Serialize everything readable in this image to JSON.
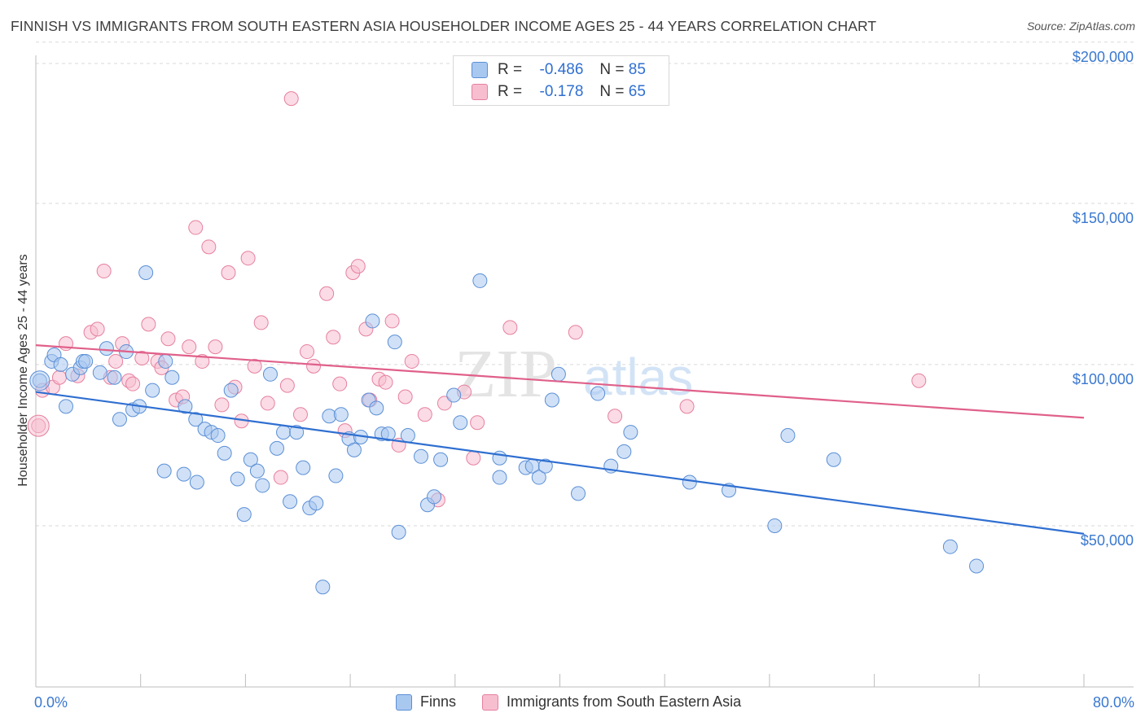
{
  "title": "FINNISH VS IMMIGRANTS FROM SOUTH EASTERN ASIA HOUSEHOLDER INCOME AGES 25 - 44 YEARS CORRELATION CHART",
  "source": "Source: ZipAtlas.com",
  "watermark": {
    "zip": "ZIP",
    "atlas": "atlas"
  },
  "legend_top": {
    "rows": [
      {
        "r_label": "R =",
        "r_value": "-0.486",
        "n_label": "N =",
        "n_value": "85"
      },
      {
        "r_label": "R =",
        "r_value": "-0.178",
        "n_label": "N =",
        "n_value": "65"
      }
    ]
  },
  "legend_bottom": {
    "series1": "Finns",
    "series2": "Immigrants from South Eastern Asia"
  },
  "colors": {
    "blue_fill": "#a9c8f0",
    "blue_stroke": "#5b8fd6",
    "blue_line": "#2f6fd1",
    "pink_fill": "#f7bed0",
    "pink_stroke": "#e6809f",
    "pink_line": "#e0608a",
    "axis_text": "#3a78d0",
    "grid": "#d9d9d9"
  },
  "chart_data": {
    "type": "scatter",
    "title": "FINNISH VS IMMIGRANTS FROM SOUTH EASTERN ASIA HOUSEHOLDER INCOME AGES 25 - 44 YEARS CORRELATION CHART",
    "xlabel": "",
    "ylabel": "Householder Income Ages 25 - 44 years",
    "xlim": [
      0,
      80
    ],
    "ylim": [
      0,
      205000
    ],
    "x_tick_labels": [
      "0.0%",
      "80.0%"
    ],
    "y_tick_labels": [
      "$50,000",
      "$100,000",
      "$150,000",
      "$200,000"
    ],
    "y_ticks": [
      50000,
      100000,
      150000,
      200000
    ],
    "grid": true,
    "legend": "top-center",
    "series": [
      {
        "name": "Finns",
        "r": -0.486,
        "n": 85,
        "trend": [
          [
            0,
            91500
          ],
          [
            80,
            47500
          ]
        ],
        "points": [
          [
            0.3,
            95000
          ],
          [
            1.2,
            101000
          ],
          [
            1.4,
            103000
          ],
          [
            1.9,
            100000
          ],
          [
            2.3,
            87000
          ],
          [
            2.8,
            97000
          ],
          [
            3.4,
            99000
          ],
          [
            3.6,
            101000
          ],
          [
            3.8,
            101000
          ],
          [
            4.9,
            97500
          ],
          [
            5.4,
            105000
          ],
          [
            6.0,
            96000
          ],
          [
            6.4,
            83000
          ],
          [
            6.9,
            104000
          ],
          [
            7.4,
            86000
          ],
          [
            7.9,
            87000
          ],
          [
            8.4,
            128500
          ],
          [
            8.9,
            92000
          ],
          [
            9.9,
            101000
          ],
          [
            9.8,
            67000
          ],
          [
            10.4,
            96000
          ],
          [
            11.3,
            66000
          ],
          [
            11.4,
            87000
          ],
          [
            12.2,
            83000
          ],
          [
            12.3,
            63500
          ],
          [
            12.9,
            80000
          ],
          [
            13.4,
            79000
          ],
          [
            13.9,
            78000
          ],
          [
            14.4,
            72500
          ],
          [
            14.9,
            92000
          ],
          [
            15.4,
            64500
          ],
          [
            15.9,
            53500
          ],
          [
            16.4,
            70500
          ],
          [
            16.9,
            67000
          ],
          [
            17.3,
            62500
          ],
          [
            17.9,
            97000
          ],
          [
            18.4,
            74000
          ],
          [
            18.9,
            79000
          ],
          [
            19.4,
            57500
          ],
          [
            19.9,
            79000
          ],
          [
            20.4,
            68000
          ],
          [
            20.9,
            55500
          ],
          [
            21.4,
            57000
          ],
          [
            21.9,
            31000
          ],
          [
            22.4,
            84000
          ],
          [
            22.9,
            65500
          ],
          [
            23.3,
            84500
          ],
          [
            23.9,
            77000
          ],
          [
            24.3,
            73500
          ],
          [
            24.8,
            77500
          ],
          [
            25.4,
            89000
          ],
          [
            25.7,
            113500
          ],
          [
            26.0,
            86500
          ],
          [
            26.4,
            78500
          ],
          [
            26.9,
            78500
          ],
          [
            27.4,
            107000
          ],
          [
            27.7,
            48000
          ],
          [
            28.4,
            78000
          ],
          [
            29.4,
            71500
          ],
          [
            29.9,
            56500
          ],
          [
            30.4,
            59000
          ],
          [
            30.9,
            70500
          ],
          [
            31.9,
            90500
          ],
          [
            32.4,
            82000
          ],
          [
            33.9,
            126000
          ],
          [
            35.4,
            65000
          ],
          [
            35.4,
            71000
          ],
          [
            37.4,
            68000
          ],
          [
            37.9,
            68500
          ],
          [
            38.4,
            65000
          ],
          [
            38.9,
            68500
          ],
          [
            39.4,
            89000
          ],
          [
            39.9,
            97000
          ],
          [
            41.4,
            60000
          ],
          [
            42.9,
            91000
          ],
          [
            43.9,
            68500
          ],
          [
            44.9,
            73000
          ],
          [
            45.4,
            79000
          ],
          [
            49.9,
            63500
          ],
          [
            52.9,
            61000
          ],
          [
            56.4,
            50000
          ],
          [
            57.4,
            78000
          ],
          [
            60.9,
            70500
          ],
          [
            69.8,
            43500
          ],
          [
            71.8,
            37500
          ]
        ]
      },
      {
        "name": "Immigrants from South Eastern Asia",
        "r": -0.178,
        "n": 65,
        "trend": [
          [
            0,
            106000
          ],
          [
            80,
            83500
          ]
        ],
        "points": [
          [
            0.2,
            81000
          ],
          [
            0.5,
            92000
          ],
          [
            1.3,
            93000
          ],
          [
            1.8,
            96000
          ],
          [
            2.3,
            106500
          ],
          [
            3.2,
            96500
          ],
          [
            4.2,
            110000
          ],
          [
            4.7,
            111000
          ],
          [
            5.2,
            129000
          ],
          [
            5.7,
            96000
          ],
          [
            6.1,
            101000
          ],
          [
            6.6,
            106500
          ],
          [
            7.1,
            95000
          ],
          [
            7.4,
            94000
          ],
          [
            8.1,
            102000
          ],
          [
            8.6,
            112500
          ],
          [
            9.3,
            101000
          ],
          [
            9.6,
            99000
          ],
          [
            10.1,
            108000
          ],
          [
            10.7,
            89000
          ],
          [
            11.2,
            90000
          ],
          [
            11.7,
            105500
          ],
          [
            12.2,
            142500
          ],
          [
            12.7,
            101000
          ],
          [
            13.2,
            136500
          ],
          [
            13.7,
            105500
          ],
          [
            14.2,
            87500
          ],
          [
            14.7,
            128500
          ],
          [
            15.2,
            93000
          ],
          [
            15.7,
            82500
          ],
          [
            16.2,
            133000
          ],
          [
            16.7,
            99500
          ],
          [
            17.2,
            113000
          ],
          [
            17.7,
            88000
          ],
          [
            18.7,
            65000
          ],
          [
            19.2,
            93500
          ],
          [
            19.5,
            182500
          ],
          [
            20.2,
            84500
          ],
          [
            20.7,
            104000
          ],
          [
            21.2,
            99500
          ],
          [
            22.2,
            122000
          ],
          [
            22.7,
            108500
          ],
          [
            23.2,
            94000
          ],
          [
            23.6,
            79500
          ],
          [
            24.2,
            128500
          ],
          [
            24.6,
            130500
          ],
          [
            25.2,
            111000
          ],
          [
            25.5,
            89000
          ],
          [
            26.2,
            95500
          ],
          [
            26.7,
            94500
          ],
          [
            27.2,
            113500
          ],
          [
            27.7,
            75000
          ],
          [
            28.2,
            90000
          ],
          [
            28.7,
            101000
          ],
          [
            29.7,
            84500
          ],
          [
            30.7,
            58000
          ],
          [
            31.2,
            88000
          ],
          [
            32.7,
            91500
          ],
          [
            33.4,
            71000
          ],
          [
            33.7,
            82000
          ],
          [
            36.2,
            111500
          ],
          [
            41.2,
            110000
          ],
          [
            44.2,
            84000
          ],
          [
            49.7,
            87000
          ],
          [
            67.4,
            95000
          ]
        ]
      }
    ]
  }
}
